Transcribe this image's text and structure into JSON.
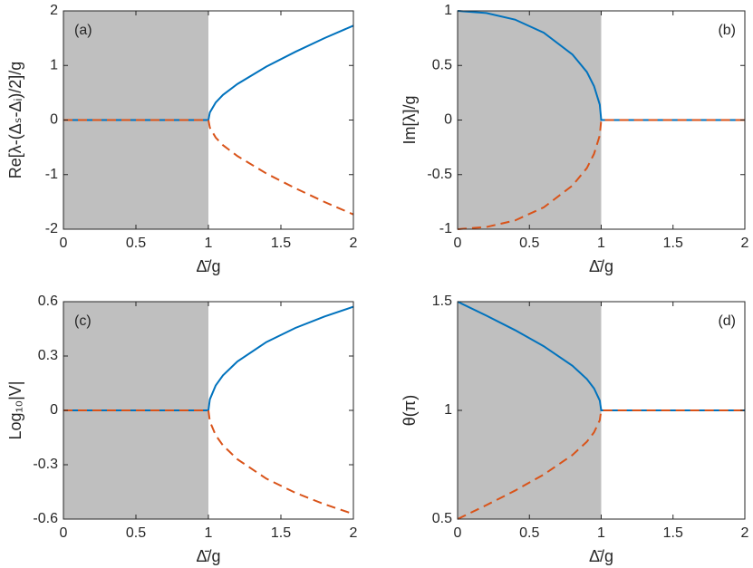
{
  "chart_data": [
    {
      "type": "line",
      "panel": "(a)",
      "panel_corner": "upper left",
      "xlabel": "Δ̄/g",
      "ylabel": "Re[λ-(Δₛ-Δᵢ)/2]/g",
      "x": [
        0,
        0.2,
        0.4,
        0.6,
        0.8,
        0.9,
        0.95,
        0.99,
        1,
        1.01,
        1.05,
        1.1,
        1.2,
        1.4,
        1.6,
        1.8,
        2
      ],
      "series": [
        {
          "color": "#0072BD",
          "dashed": false,
          "values": [
            0,
            0,
            0,
            0,
            0,
            0,
            0,
            0,
            0,
            0.14,
            0.32,
            0.46,
            0.66,
            0.98,
            1.25,
            1.5,
            1.73
          ]
        },
        {
          "color": "#D95319",
          "dashed": true,
          "values": [
            0,
            0,
            0,
            0,
            0,
            0,
            0,
            0,
            0,
            -0.14,
            -0.32,
            -0.46,
            -0.66,
            -0.98,
            -1.25,
            -1.5,
            -1.73
          ]
        }
      ],
      "shaded_x": [
        0,
        1
      ],
      "shade_color": "#bfbfbf",
      "xlim": [
        0,
        2
      ],
      "xticks": [
        0,
        0.5,
        1,
        1.5,
        2
      ],
      "ylim": [
        -2,
        2
      ],
      "yticks": [
        -2,
        -1,
        0,
        1,
        2
      ]
    },
    {
      "type": "line",
      "panel": "(b)",
      "panel_corner": "upper right",
      "xlabel": "Δ̄/g",
      "ylabel": "Im[λ]/g",
      "x": [
        0,
        0.2,
        0.4,
        0.6,
        0.8,
        0.9,
        0.95,
        0.99,
        1,
        1.01,
        1.05,
        1.1,
        1.2,
        1.4,
        1.6,
        1.8,
        2
      ],
      "series": [
        {
          "color": "#0072BD",
          "dashed": false,
          "values": [
            1,
            0.98,
            0.92,
            0.8,
            0.6,
            0.44,
            0.31,
            0.14,
            0,
            0,
            0,
            0,
            0,
            0,
            0,
            0,
            0
          ]
        },
        {
          "color": "#D95319",
          "dashed": true,
          "values": [
            -1,
            -0.98,
            -0.92,
            -0.8,
            -0.6,
            -0.44,
            -0.31,
            -0.14,
            0,
            0,
            0,
            0,
            0,
            0,
            0,
            0,
            0
          ]
        }
      ],
      "shaded_x": [
        0,
        1
      ],
      "shade_color": "#bfbfbf",
      "xlim": [
        0,
        2
      ],
      "xticks": [
        0,
        0.5,
        1,
        1.5,
        2
      ],
      "ylim": [
        -1,
        1
      ],
      "yticks": [
        -1,
        -0.5,
        0,
        0.5,
        1
      ]
    },
    {
      "type": "line",
      "panel": "(c)",
      "panel_corner": "upper left",
      "xlabel": "Δ̄/g",
      "ylabel": "Log₁₀|V|",
      "x": [
        0,
        0.2,
        0.4,
        0.6,
        0.8,
        0.9,
        0.95,
        0.99,
        1,
        1.01,
        1.05,
        1.1,
        1.2,
        1.4,
        1.6,
        1.8,
        2
      ],
      "series": [
        {
          "color": "#0072BD",
          "dashed": false,
          "values": [
            0,
            0,
            0,
            0,
            0,
            0,
            0,
            0,
            0,
            0.061,
            0.137,
            0.193,
            0.27,
            0.377,
            0.455,
            0.518,
            0.572
          ]
        },
        {
          "color": "#D95319",
          "dashed": true,
          "values": [
            0,
            0,
            0,
            0,
            0,
            0,
            0,
            0,
            0,
            -0.061,
            -0.137,
            -0.193,
            -0.27,
            -0.377,
            -0.455,
            -0.518,
            -0.572
          ]
        }
      ],
      "shaded_x": [
        0,
        1
      ],
      "shade_color": "#bfbfbf",
      "xlim": [
        0,
        2
      ],
      "xticks": [
        0,
        0.5,
        1,
        1.5,
        2
      ],
      "ylim": [
        -0.6,
        0.6
      ],
      "yticks": [
        -0.6,
        -0.3,
        0,
        0.3,
        0.6
      ]
    },
    {
      "type": "line",
      "panel": "(d)",
      "panel_corner": "upper right",
      "xlabel": "Δ̄/g",
      "ylabel": "θ(π)",
      "x": [
        0,
        0.2,
        0.4,
        0.6,
        0.8,
        0.9,
        0.95,
        0.99,
        1,
        1.01,
        1.05,
        1.1,
        1.2,
        1.4,
        1.6,
        1.8,
        2
      ],
      "series": [
        {
          "color": "#0072BD",
          "dashed": false,
          "values": [
            1.5,
            1.436,
            1.369,
            1.295,
            1.205,
            1.144,
            1.101,
            1.045,
            1,
            1,
            1,
            1,
            1,
            1,
            1,
            1,
            1
          ]
        },
        {
          "color": "#D95319",
          "dashed": true,
          "values": [
            0.5,
            0.564,
            0.631,
            0.705,
            0.795,
            0.856,
            0.899,
            0.955,
            1,
            1,
            1,
            1,
            1,
            1,
            1,
            1,
            1
          ]
        }
      ],
      "shaded_x": [
        0,
        1
      ],
      "shade_color": "#bfbfbf",
      "xlim": [
        0,
        2
      ],
      "xticks": [
        0,
        0.5,
        1,
        1.5,
        2
      ],
      "ylim": [
        0.5,
        1.5
      ],
      "yticks": [
        0.5,
        1,
        1.5
      ]
    }
  ]
}
